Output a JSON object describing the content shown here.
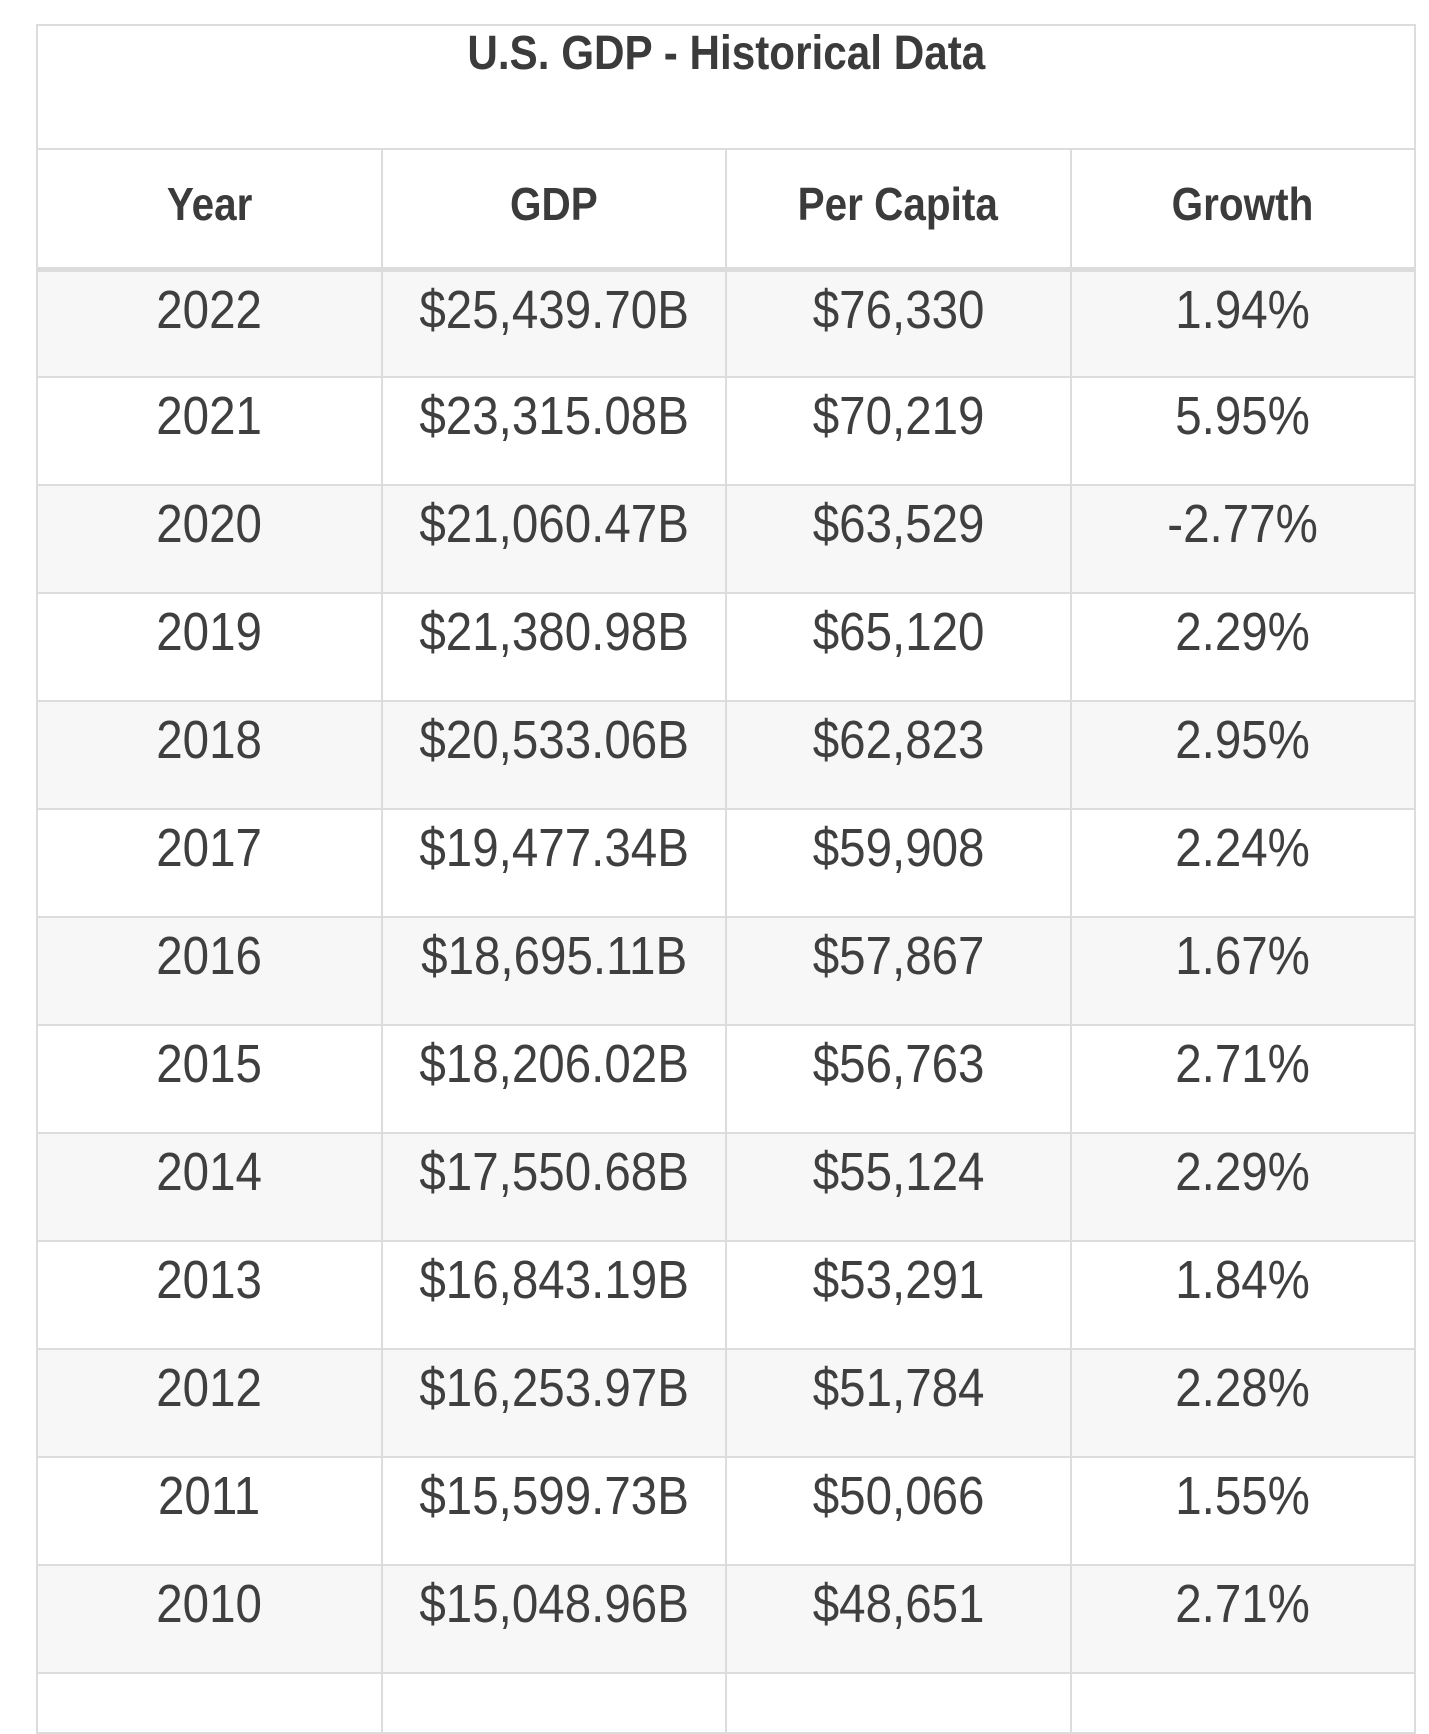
{
  "chart_data": {
    "type": "table",
    "title": "U.S. GDP - Historical Data",
    "columns": [
      "Year",
      "GDP",
      "Per Capita",
      "Growth"
    ],
    "rows": [
      [
        "2022",
        "$25,439.70B",
        "$76,330",
        "1.94%"
      ],
      [
        "2021",
        "$23,315.08B",
        "$70,219",
        "5.95%"
      ],
      [
        "2020",
        "$21,060.47B",
        "$63,529",
        "-2.77%"
      ],
      [
        "2019",
        "$21,380.98B",
        "$65,120",
        "2.29%"
      ],
      [
        "2018",
        "$20,533.06B",
        "$62,823",
        "2.95%"
      ],
      [
        "2017",
        "$19,477.34B",
        "$59,908",
        "2.24%"
      ],
      [
        "2016",
        "$18,695.11B",
        "$57,867",
        "1.67%"
      ],
      [
        "2015",
        "$18,206.02B",
        "$56,763",
        "2.71%"
      ],
      [
        "2014",
        "$17,550.68B",
        "$55,124",
        "2.29%"
      ],
      [
        "2013",
        "$16,843.19B",
        "$53,291",
        "1.84%"
      ],
      [
        "2012",
        "$16,253.97B",
        "$51,784",
        "2.28%"
      ],
      [
        "2011",
        "$15,599.73B",
        "$50,066",
        "1.55%"
      ],
      [
        "2010",
        "$15,048.96B",
        "$48,651",
        "2.71%"
      ]
    ]
  },
  "colors": {
    "border": "#dcdcdc",
    "row_stripe": "#f7f7f7",
    "row_plain": "#ffffff",
    "text": "#3f3f3f",
    "heading_text": "#3b3b3b",
    "page_background": "#ffffff"
  }
}
